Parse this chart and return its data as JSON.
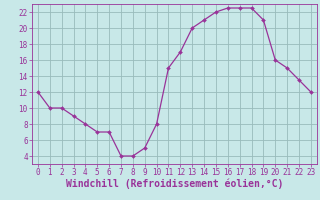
{
  "hours": [
    0,
    1,
    2,
    3,
    4,
    5,
    6,
    7,
    8,
    9,
    10,
    11,
    12,
    13,
    14,
    15,
    16,
    17,
    18,
    19,
    20,
    21,
    22,
    23
  ],
  "values": [
    12,
    10,
    10,
    9,
    8,
    7,
    7,
    4,
    4,
    5,
    8,
    15,
    17,
    20,
    21,
    22,
    22.5,
    22.5,
    22.5,
    21,
    16,
    15,
    13.5,
    12
  ],
  "line_color": "#993399",
  "marker": "D",
  "marker_size": 2.0,
  "bg_color": "#c8e8e8",
  "grid_color": "#99bbbb",
  "xlabel": "Windchill (Refroidissement éolien,°C)",
  "xlim": [
    -0.5,
    23.5
  ],
  "ylim": [
    3,
    23
  ],
  "yticks": [
    4,
    6,
    8,
    10,
    12,
    14,
    16,
    18,
    20,
    22
  ],
  "xticks": [
    0,
    1,
    2,
    3,
    4,
    5,
    6,
    7,
    8,
    9,
    10,
    11,
    12,
    13,
    14,
    15,
    16,
    17,
    18,
    19,
    20,
    21,
    22,
    23
  ],
  "tick_color": "#993399",
  "tick_fontsize": 5.5,
  "xlabel_fontsize": 7.0
}
